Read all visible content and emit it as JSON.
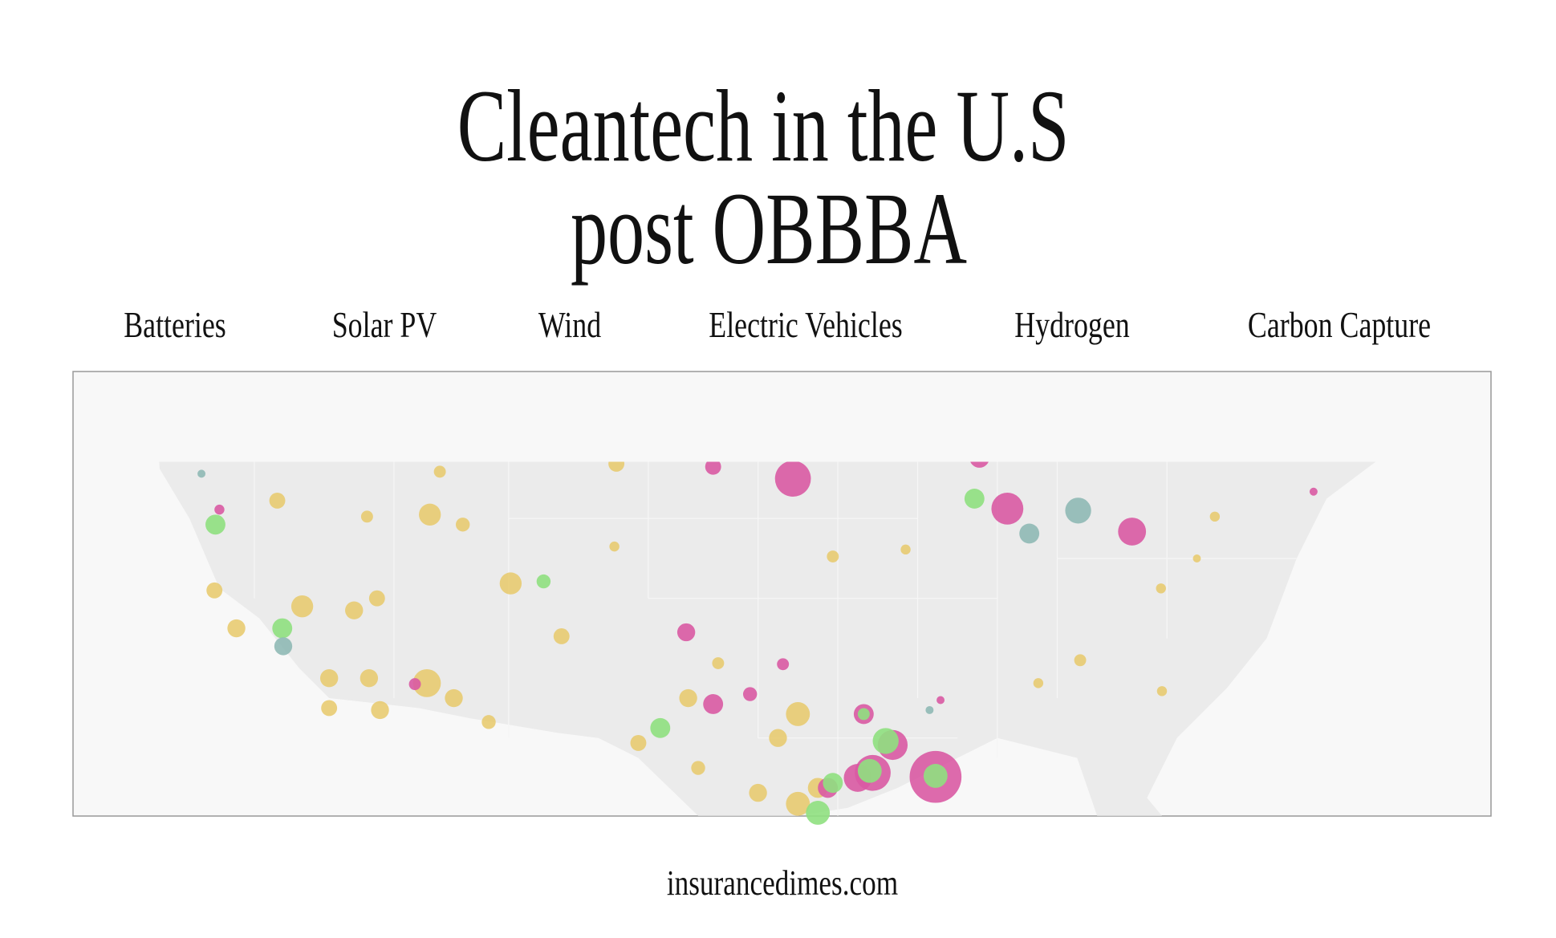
{
  "header": {
    "title_lines": [
      "Cleantech in the U.S",
      "post OBBBA"
    ]
  },
  "tabs": [
    "Batteries",
    "Solar PV",
    "Wind",
    "Electric Vehicles",
    "Hydrogen",
    "Carbon Capture"
  ],
  "footer": {
    "site": "insurancedimes.com"
  }
}
